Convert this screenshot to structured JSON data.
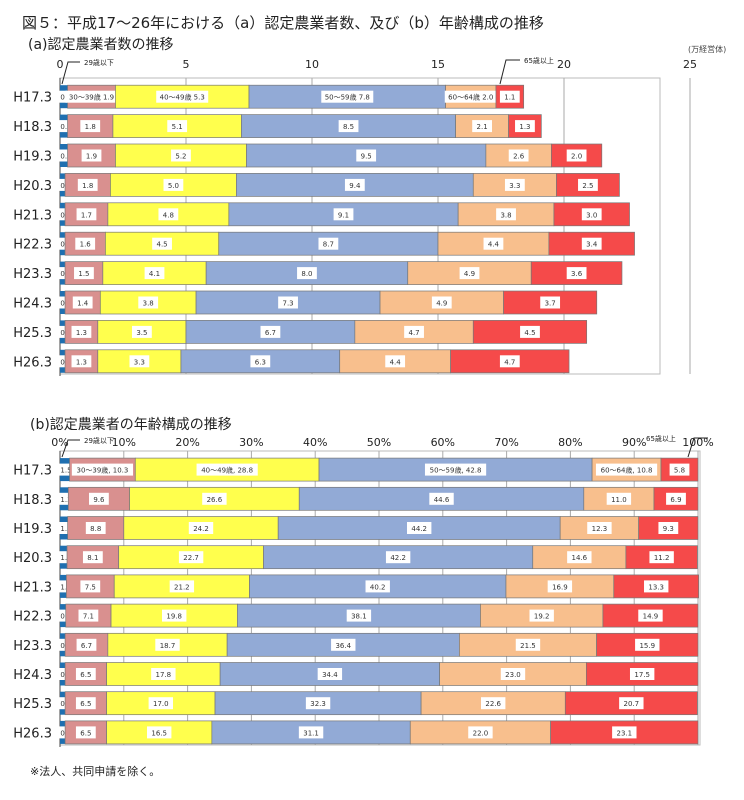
{
  "title": "図５：平成17～26年における（a）認定農業者数、及び（b）年齢構成の推移",
  "footnote": "※法人、共同申請を除く。",
  "colors": {
    "29歳以下": "#1f6fb0",
    "30～39歳": "#d9908f",
    "40～49歳": "#ffff4d",
    "50～59歳": "#92aad6",
    "60～64歳": "#f8bf8d",
    "65歳以上": "#f54a4a"
  },
  "chart_data": [
    {
      "type": "bar",
      "orientation": "horizontal",
      "stacked": true,
      "title": "(a)認定農業者数の推移",
      "unit": "(万経営体)",
      "xlim": [
        0,
        25
      ],
      "xticks": [
        0,
        5,
        10,
        15,
        20,
        25
      ],
      "grid": true,
      "categories": [
        "H17.3",
        "H18.3",
        "H19.3",
        "H20.3",
        "H21.3",
        "H22.3",
        "H23.3",
        "H24.3",
        "H25.3",
        "H26.3"
      ],
      "series": [
        {
          "name": "29歳以下",
          "values": [
            0.3,
            0.3,
            0.3,
            0.2,
            0.2,
            0.2,
            0.2,
            0.2,
            0.2,
            0.2
          ]
        },
        {
          "name": "30～39歳",
          "values": [
            1.9,
            1.8,
            1.9,
            1.8,
            1.7,
            1.6,
            1.5,
            1.4,
            1.3,
            1.3
          ]
        },
        {
          "name": "40～49歳",
          "values": [
            5.3,
            5.1,
            5.2,
            5.0,
            4.8,
            4.5,
            4.1,
            3.8,
            3.5,
            3.3
          ]
        },
        {
          "name": "50～59歳",
          "values": [
            7.8,
            8.5,
            9.5,
            9.4,
            9.1,
            8.7,
            8.0,
            7.3,
            6.7,
            6.3
          ]
        },
        {
          "name": "60～64歳",
          "values": [
            2.0,
            2.1,
            2.6,
            3.3,
            3.8,
            4.4,
            4.9,
            4.9,
            4.7,
            4.4
          ]
        },
        {
          "name": "65歳以上",
          "values": [
            1.1,
            1.3,
            2.0,
            2.5,
            3.0,
            3.4,
            3.6,
            3.7,
            4.5,
            4.7
          ]
        }
      ]
    },
    {
      "type": "bar",
      "orientation": "horizontal",
      "stacked": true,
      "title": "(b)認定農業者の年齢構成の推移",
      "xlim": [
        0,
        100
      ],
      "xticks": [
        "0%",
        "10%",
        "20%",
        "30%",
        "40%",
        "50%",
        "60%",
        "70%",
        "80%",
        "90%",
        "100%"
      ],
      "grid": true,
      "categories": [
        "H17.3",
        "H18.3",
        "H19.3",
        "H20.3",
        "H21.3",
        "H22.3",
        "H23.3",
        "H24.3",
        "H25.3",
        "H26.3"
      ],
      "series": [
        {
          "name": "29歳以下",
          "values": [
            1.5,
            1.3,
            1.2,
            1.1,
            1.0,
            0.9,
            0.8,
            0.8,
            0.8,
            0.8
          ]
        },
        {
          "name": "30～39歳",
          "values": [
            10.3,
            9.6,
            8.8,
            8.1,
            7.5,
            7.1,
            6.7,
            6.5,
            6.5,
            6.5
          ]
        },
        {
          "name": "40～49歳",
          "values": [
            28.8,
            26.6,
            24.2,
            22.7,
            21.2,
            19.8,
            18.7,
            17.8,
            17.0,
            16.5
          ]
        },
        {
          "name": "50～59歳",
          "values": [
            42.8,
            44.6,
            44.2,
            42.2,
            40.2,
            38.1,
            36.4,
            34.4,
            32.3,
            31.1
          ]
        },
        {
          "name": "60～64歳",
          "values": [
            10.8,
            11.0,
            12.3,
            14.6,
            16.9,
            19.2,
            21.5,
            23.0,
            22.6,
            22.0
          ]
        },
        {
          "name": "65歳以上",
          "values": [
            5.8,
            6.9,
            9.3,
            11.2,
            13.3,
            14.9,
            15.9,
            17.5,
            20.7,
            23.1
          ]
        }
      ]
    }
  ]
}
